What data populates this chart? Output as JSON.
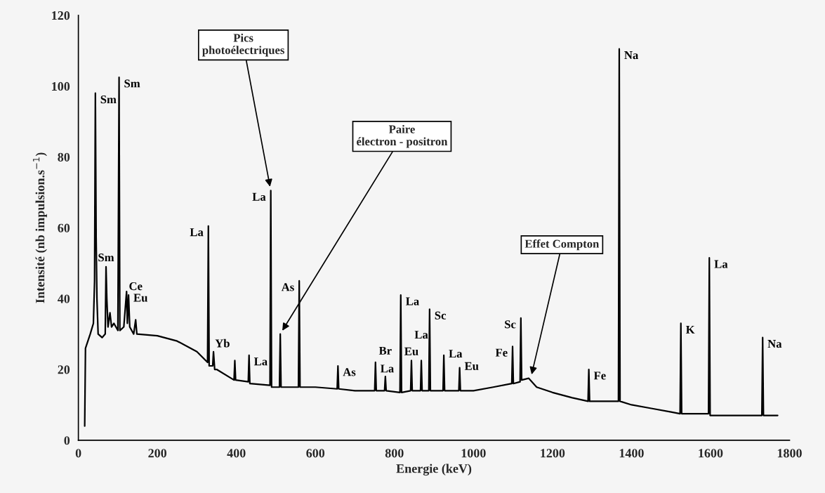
{
  "chart_data": {
    "type": "line",
    "xlabel": "Energie (keV)",
    "ylabel": "Intensité (nb impulsion.s$^{−1}$)",
    "xlim": [
      0,
      1800
    ],
    "xticks": [
      0,
      200,
      400,
      600,
      800,
      1000,
      1200,
      1400,
      1600,
      1800
    ],
    "ylim": [
      0,
      120
    ],
    "yticks": [
      0,
      20,
      40,
      60,
      80,
      100,
      120
    ],
    "grid": false,
    "legend": false,
    "marker": "none",
    "line_style": "solid",
    "x": [
      16,
      18,
      30,
      38,
      41,
      43,
      45,
      47,
      50,
      60,
      68,
      70,
      72,
      75,
      80,
      84,
      90,
      100,
      103,
      105,
      115,
      122,
      124,
      127,
      130,
      140,
      145,
      148,
      200,
      250,
      300,
      327,
      329,
      331,
      340,
      342,
      345,
      350,
      394,
      396,
      398,
      430,
      432,
      434,
      485,
      487,
      489,
      509,
      511,
      513,
      557,
      559,
      561,
      600,
      655,
      657,
      659,
      700,
      750,
      752,
      754,
      775,
      777,
      779,
      814,
      816,
      818,
      841,
      843,
      845,
      866,
      868,
      870,
      887,
      889,
      891,
      923,
      925,
      927,
      963,
      965,
      967,
      1000,
      1050,
      1097,
      1099,
      1101,
      1118,
      1120,
      1122,
      1140,
      1160,
      1200,
      1250,
      1290,
      1292,
      1294,
      1330,
      1367,
      1369,
      1371,
      1400,
      1450,
      1500,
      1523,
      1525,
      1527,
      1595,
      1597,
      1599,
      1650,
      1700,
      1730,
      1732,
      1734,
      1770
    ],
    "series": [
      {
        "color": "#000000",
        "values": [
          4,
          26,
          30,
          33,
          45,
          98,
          57,
          40,
          30,
          29,
          30,
          49,
          40,
          32,
          36,
          32,
          33,
          31,
          102.5,
          31,
          32,
          42,
          33,
          41,
          32,
          30,
          34,
          30,
          29.5,
          28,
          25,
          22,
          60.5,
          21,
          21,
          25,
          20,
          20,
          17,
          22.5,
          17,
          16.5,
          24,
          16,
          15.5,
          70.5,
          15,
          15,
          30,
          15,
          15,
          45,
          15,
          15,
          14.5,
          21,
          14.5,
          14,
          14,
          22,
          14,
          14,
          18,
          14,
          13.5,
          41,
          13.5,
          14,
          22.5,
          14,
          14,
          22.5,
          14,
          14,
          37,
          14,
          14,
          24,
          14,
          14,
          20.5,
          14,
          14,
          15,
          16,
          26.5,
          16,
          16.5,
          34.5,
          17,
          17.5,
          15,
          13.5,
          12,
          11,
          20,
          11,
          11,
          11,
          110.5,
          11,
          10,
          9,
          8,
          7.5,
          33,
          7.5,
          7.5,
          51.5,
          7,
          7,
          7,
          7,
          29,
          7,
          7
        ]
      }
    ],
    "annotations": [
      {
        "text": "Pics\nphotoélectriques",
        "x": 487,
        "y": 70.5
      },
      {
        "text": "Paire\nélectron - positron",
        "x": 511,
        "y": 30
      },
      {
        "text": "Effet Compton",
        "x": 1145,
        "y": 17.5
      },
      {
        "text": "Sm",
        "x": 43,
        "y": 98
      },
      {
        "text": "Sm",
        "x": 103,
        "y": 102.5
      },
      {
        "text": "Sm",
        "x": 70,
        "y": 49
      },
      {
        "text": "Eu",
        "x": 127,
        "y": 42
      },
      {
        "text": "Ce",
        "x": 145,
        "y": 34
      },
      {
        "text": "La",
        "x": 329,
        "y": 60.5
      },
      {
        "text": "Yb",
        "x": 396,
        "y": 22.5
      },
      {
        "text": "La",
        "x": 432,
        "y": 24
      },
      {
        "text": "La",
        "x": 487,
        "y": 70.5
      },
      {
        "text": "As",
        "x": 559,
        "y": 45
      },
      {
        "text": "As",
        "x": 657,
        "y": 21
      },
      {
        "text": "La",
        "x": 752,
        "y": 22
      },
      {
        "text": "Br",
        "x": 777,
        "y": 18
      },
      {
        "text": "La",
        "x": 816,
        "y": 41
      },
      {
        "text": "Eu",
        "x": 843,
        "y": 22.5
      },
      {
        "text": "La",
        "x": 868,
        "y": 22.5
      },
      {
        "text": "Sc",
        "x": 889,
        "y": 37
      },
      {
        "text": "La",
        "x": 925,
        "y": 24
      },
      {
        "text": "Eu",
        "x": 965,
        "y": 20.5
      },
      {
        "text": "Fe",
        "x": 1099,
        "y": 26.5
      },
      {
        "text": "Sc",
        "x": 1120,
        "y": 34.5
      },
      {
        "text": "Fe",
        "x": 1292,
        "y": 20
      },
      {
        "text": "Na",
        "x": 1369,
        "y": 110.5
      },
      {
        "text": "K",
        "x": 1525,
        "y": 33
      },
      {
        "text": "La",
        "x": 1597,
        "y": 51.5
      },
      {
        "text": "Na",
        "x": 1732,
        "y": 29
      }
    ]
  }
}
